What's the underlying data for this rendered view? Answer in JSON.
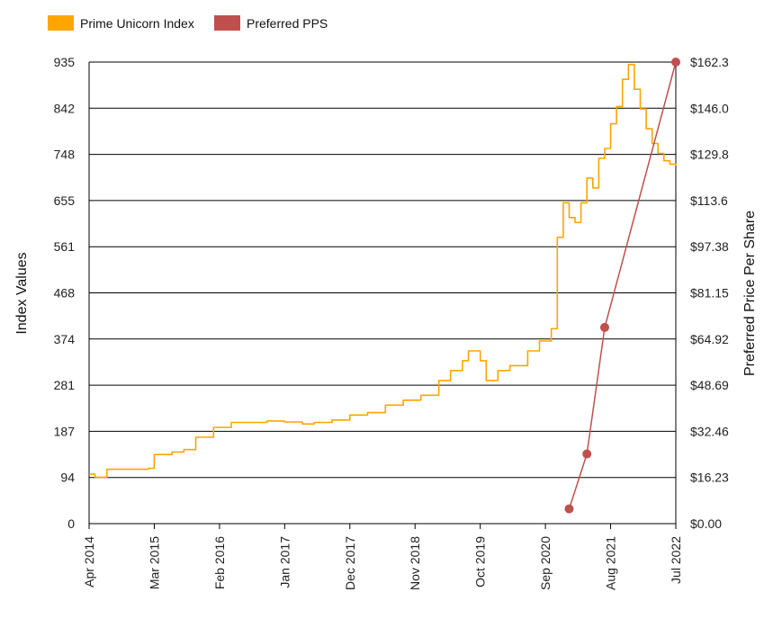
{
  "chart_data": {
    "type": "line",
    "legend_position": "top-left",
    "grid": true,
    "y_left": {
      "label": "Index Values",
      "range": [
        0,
        935
      ],
      "ticks": [
        "0",
        "94",
        "187",
        "281",
        "374",
        "468",
        "561",
        "655",
        "748",
        "842",
        "935"
      ]
    },
    "y_right": {
      "label": "Preferred Price Per Share",
      "range": [
        0,
        162.3
      ],
      "ticks": [
        "$0.00",
        "$16.23",
        "$32.46",
        "$48.69",
        "$64.92",
        "$81.15",
        "$97.38",
        "$113.6",
        "$129.8",
        "$146.0",
        "$162.3"
      ]
    },
    "x_axis": {
      "range": [
        "2014-04",
        "2022-07"
      ],
      "ticks": [
        "Apr 2014",
        "Mar 2015",
        "Feb 2016",
        "Jan 2017",
        "Dec 2017",
        "Nov 2018",
        "Oct 2019",
        "Sep 2020",
        "Aug 2021",
        "Jul 2022"
      ]
    },
    "series": [
      {
        "name": "Prime Unicorn Index",
        "color": "#FFA500",
        "axis": "left",
        "x": [
          "2014-04",
          "2014-05",
          "2014-07",
          "2015-02",
          "2015-03",
          "2015-06",
          "2015-08",
          "2015-10",
          "2016-01",
          "2016-04",
          "2016-10",
          "2017-01",
          "2017-04",
          "2017-06",
          "2017-09",
          "2017-12",
          "2018-03",
          "2018-06",
          "2018-09",
          "2018-12",
          "2019-03",
          "2019-05",
          "2019-07",
          "2019-08",
          "2019-10",
          "2019-11",
          "2020-01",
          "2020-03",
          "2020-06",
          "2020-08",
          "2020-10",
          "2020-11",
          "2020-12",
          "2021-01",
          "2021-02",
          "2021-03",
          "2021-04",
          "2021-05",
          "2021-06",
          "2021-07",
          "2021-08",
          "2021-09",
          "2021-10",
          "2021-11",
          "2021-12",
          "2022-01",
          "2022-02",
          "2022-03",
          "2022-04",
          "2022-05",
          "2022-06",
          "2022-07"
        ],
        "y": [
          100,
          94,
          110,
          112,
          140,
          145,
          150,
          175,
          195,
          205,
          208,
          206,
          202,
          205,
          210,
          220,
          225,
          240,
          250,
          260,
          290,
          310,
          330,
          350,
          330,
          290,
          310,
          320,
          350,
          370,
          395,
          580,
          650,
          620,
          610,
          650,
          700,
          680,
          740,
          760,
          810,
          845,
          900,
          930,
          880,
          840,
          800,
          770,
          750,
          735,
          728,
          725
        ]
      },
      {
        "name": "Preferred PPS",
        "color": "#C0504D",
        "axis": "right",
        "x": [
          "2021-01",
          "2021-04",
          "2021-07",
          "2022-07"
        ],
        "y": [
          5.2,
          24.5,
          69.0,
          162.3
        ]
      }
    ]
  }
}
